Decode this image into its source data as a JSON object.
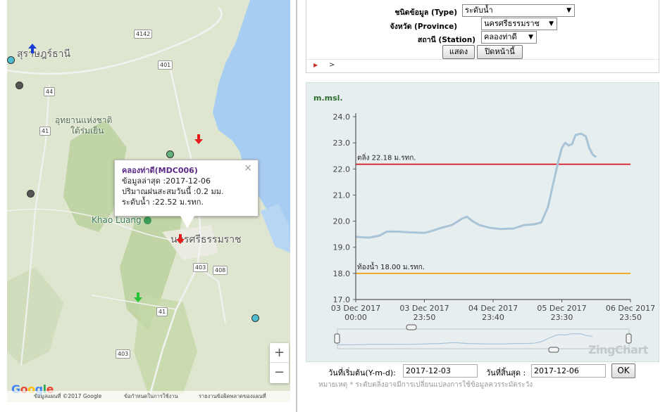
{
  "map": {
    "labels": {
      "city_north": "สุราษฎร์ธานี",
      "park_line1": "อุทยานแห่งชาติ",
      "park_line2": "ใต้ร่มเย็น",
      "khao_luang": "Khao Luang",
      "city_main": "นครศรีธรรมราช"
    },
    "routes": [
      "4142",
      "401",
      "44",
      "41",
      "403",
      "408",
      "41",
      "403"
    ],
    "popup": {
      "title": "คลองท่าดี(MDC006)",
      "line1": "ข้อมูลล่าสุด :2017-12-06",
      "line2": "ปริมาณฝนสะสมวันนี้ :0.2 มม.",
      "line3": "ระดับน้ำ :22.52 ม.รทก.",
      "close": "×"
    },
    "zoom_in": "+",
    "zoom_out": "−",
    "google": "Google",
    "footer": {
      "data": "ข้อมูลแผนที่ ©2017 Google",
      "terms": "ข้อกำหนดในการใช้งาน",
      "report": "รายงานข้อผิดพลาดของแผนที่"
    }
  },
  "form": {
    "type_label": "ชนิดข้อมูล (Type)",
    "type_value": "ระดับน้ำ",
    "province_label": "จังหวัด (Province)",
    "province_value": "นครศรีธรรมราช",
    "station_label": "สถานี (Station)",
    "station_value": "คลองท่าดี",
    "show_button": "แสดง",
    "close_button": "ปิดหน้านี้",
    "play_icon": "▶",
    "next_icon": ">"
  },
  "chart_data": {
    "type": "line",
    "ylabel": "m.msl.",
    "ylim": [
      17.0,
      24.0
    ],
    "yticks": [
      "24.0",
      "23.0",
      "22.0",
      "21.0",
      "20.0",
      "19.0",
      "18.0",
      "17.0"
    ],
    "xticks": [
      {
        "date": "03 Dec 2017",
        "time": "00:00"
      },
      {
        "date": "03 Dec 2017",
        "time": "23:50"
      },
      {
        "date": "04 Dec 2017",
        "time": "23:40"
      },
      {
        "date": "05 Dec 2017",
        "time": "23:30"
      },
      {
        "date": "06 Dec 2017",
        "time": "23:50"
      }
    ],
    "x_range_days": [
      0,
      4
    ],
    "reference_lines": [
      {
        "label": "ตลิ่ง 22.18 ม.รทก.",
        "value": 22.18,
        "color": "#d9161c"
      },
      {
        "label": "ท้องน้ำ 18.00 ม.รทก.",
        "value": 18.0,
        "color": "#f0a30a"
      }
    ],
    "series": [
      {
        "color": "#a9c4d6",
        "x": [
          0.0,
          0.2,
          0.35,
          0.45,
          0.6,
          0.8,
          1.0,
          1.1,
          1.25,
          1.4,
          1.55,
          1.62,
          1.7,
          1.8,
          1.95,
          2.1,
          2.3,
          2.45,
          2.6,
          2.7,
          2.8,
          2.88,
          2.95,
          3.0,
          3.05,
          3.1,
          3.15,
          3.2,
          3.28,
          3.35,
          3.4,
          3.45,
          3.5
        ],
        "y": [
          19.4,
          19.37,
          19.45,
          19.6,
          19.6,
          19.57,
          19.55,
          19.62,
          19.75,
          19.85,
          20.1,
          20.17,
          20.0,
          19.85,
          19.75,
          19.7,
          19.72,
          19.85,
          19.88,
          19.95,
          20.55,
          21.5,
          22.3,
          22.8,
          23.0,
          22.9,
          22.95,
          23.3,
          23.35,
          23.25,
          22.8,
          22.55,
          22.45
        ]
      }
    ]
  },
  "watermark": "ZingChart",
  "dates": {
    "start_label": "วันที่เริ่มต้น(Y-m-d):",
    "start_value": "2017-12-03",
    "end_label": "วันที่สิ้นสุด :",
    "end_value": "2017-12-06",
    "ok": "OK",
    "note": "หมายเหตุ * ระดับตลิ่งอาจมีการเปลี่ยนแปลงการใช้ข้อมูลควรระมัดระวัง"
  }
}
